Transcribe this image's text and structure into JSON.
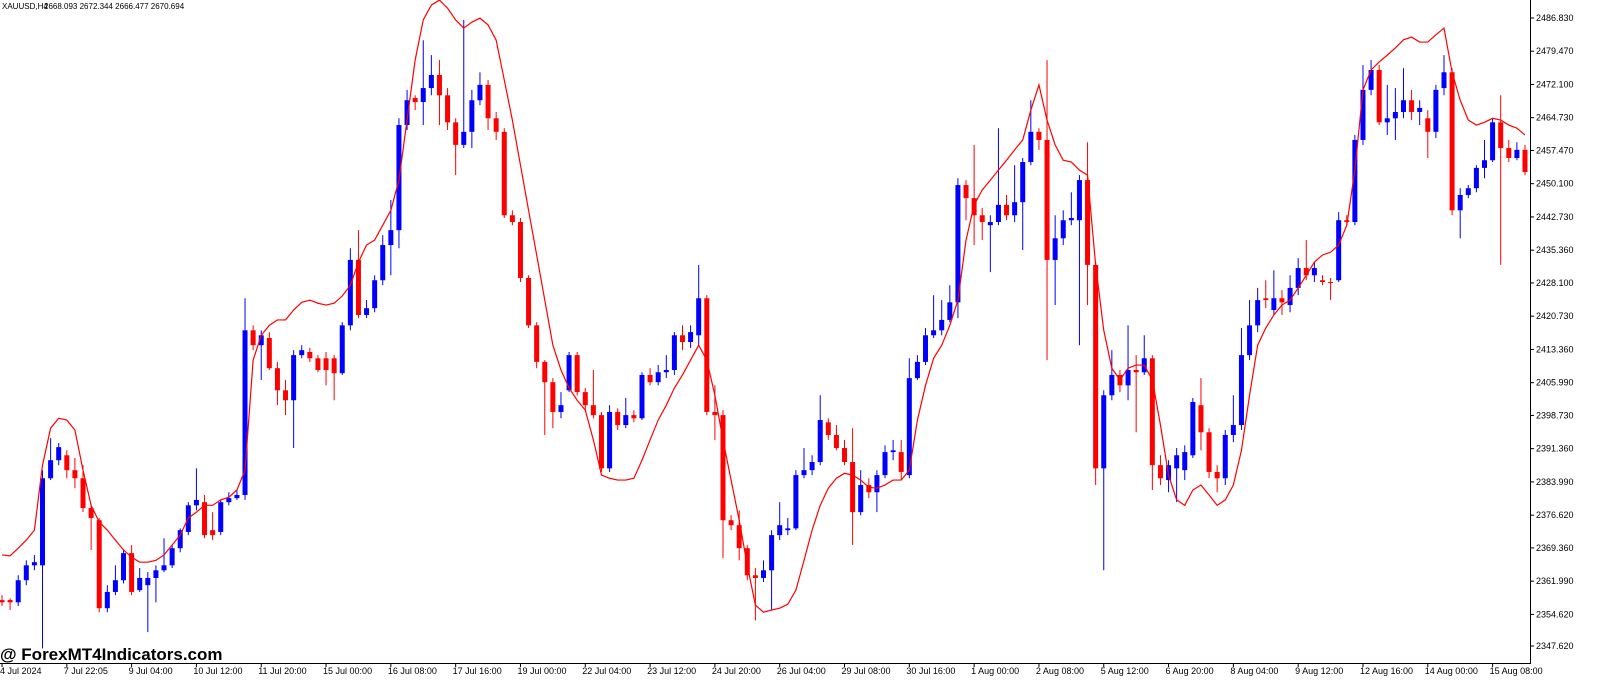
{
  "chart_data": {
    "type": "candlestick",
    "title": "XAUUSD,H4",
    "subtitle": "2668.093 2672.344 2666.477 2670.694",
    "annotation": "@ ForexMT4Indicators.com",
    "up_color": "#0000ff",
    "down_color": "#ff0000",
    "overlay_color": "#ff0000",
    "categories": [
      "4 Jul 2024",
      null,
      null,
      null,
      null,
      null,
      null,
      null,
      "7 Jul 22:05",
      null,
      null,
      null,
      null,
      null,
      null,
      null,
      "9 Jul 04:00",
      null,
      null,
      null,
      null,
      null,
      null,
      null,
      "10 Jul 12:00",
      null,
      null,
      null,
      null,
      null,
      null,
      null,
      "11 Jul 20:00",
      null,
      null,
      null,
      null,
      null,
      null,
      null,
      "15 Jul 00:00",
      null,
      null,
      null,
      null,
      null,
      null,
      null,
      "16 Jul 08:00",
      null,
      null,
      null,
      null,
      null,
      null,
      null,
      "17 Jul 16:00",
      null,
      null,
      null,
      null,
      null,
      null,
      null,
      "19 Jul 00:00",
      null,
      null,
      null,
      null,
      null,
      null,
      null,
      "22 Jul 04:00",
      null,
      null,
      null,
      null,
      null,
      null,
      null,
      "23 Jul 12:00",
      null,
      null,
      null,
      null,
      null,
      null,
      null,
      "24 Jul 20:00",
      null,
      null,
      null,
      null,
      null,
      null,
      null,
      "26 Jul 04:00",
      null,
      null,
      null,
      null,
      null,
      null,
      null,
      "29 Jul 08:00",
      null,
      null,
      null,
      null,
      null,
      null,
      null,
      "30 Jul 16:00",
      null,
      null,
      null,
      null,
      null,
      null,
      null,
      "1 Aug 00:00",
      null,
      null,
      null,
      null,
      null,
      null,
      null,
      "2 Aug 08:00",
      null,
      null,
      null,
      null,
      null,
      null,
      null,
      "5 Aug 12:00",
      null,
      null,
      null,
      null,
      null,
      null,
      null,
      "6 Aug 20:00",
      null,
      null,
      null,
      null,
      null,
      null,
      null,
      "8 Aug 04:00",
      null,
      null,
      null,
      null,
      null,
      null,
      null,
      "9 Aug 12:00",
      null,
      null,
      null,
      null,
      null,
      null,
      null,
      "12 Aug 16:00",
      null,
      null,
      null,
      null,
      null,
      null,
      null,
      "14 Aug 00:00",
      null,
      null,
      null,
      null,
      null,
      null,
      null,
      "15 Aug 08:00",
      null,
      null,
      null,
      null
    ],
    "open": [
      2357.8,
      2357.8,
      2357.3,
      2362.2,
      2365.5,
      2365.5,
      2384.8,
      2388.8,
      2389.9,
      2386.6,
      2384.8,
      2378.2,
      2375.5,
      2356.0,
      2359.6,
      2362.2,
      2368.2,
      2360.0,
      2361.1,
      2362.7,
      2364.4,
      2365.5,
      2369.3,
      2372.9,
      2378.8,
      2379.5,
      2373.3,
      2372.9,
      2379.5,
      2380.4,
      2381.1,
      2417.6,
      2414.3,
      2415.9,
      2409.2,
      2404.3,
      2402.1,
      2412.1,
      2412.8,
      2411.4,
      2411.4,
      2411.4,
      2408.1,
      2418.7,
      2433.2,
      2421.0,
      2422.5,
      2428.7,
      2436.5,
      2439.8,
      2463.1,
      2469.1,
      2468.2,
      2471.3,
      2474.2,
      2469.7,
      2463.7,
      2458.7,
      2461.6,
      2468.6,
      2472.0,
      2464.6,
      2461.6,
      2443.1,
      2441.6,
      2429.2,
      2418.7,
      2410.6,
      2406.1,
      2399.5,
      2404.3,
      2412.1,
      2403.9,
      2401.0,
      2398.8,
      2387.0,
      2399.5,
      2396.6,
      2398.8,
      2398.1,
      2407.7,
      2406.1,
      2408.3,
      2408.8,
      2416.5,
      2415.0,
      2416.5,
      2424.7,
      2399.5,
      2398.8,
      2375.5,
      2374.4,
      2369.3,
      2363.3,
      2362.7,
      2364.4,
      2372.2,
      2373.3,
      2373.7,
      2385.5,
      2386.6,
      2388.4,
      2397.2,
      2394.4,
      2391.5,
      2388.4,
      2377.3,
      2383.3,
      2381.7,
      2385.5,
      2390.6,
      2390.6,
      2385.5,
      2407.0,
      2410.6,
      2416.5,
      2417.6,
      2419.9,
      2423.8,
      2449.8,
      2446.9,
      2443.1,
      2440.9,
      2441.6,
      2445.4,
      2443.1,
      2446.0,
      2454.9,
      2461.6,
      2459.8,
      2433.2,
      2438.0,
      2442.0,
      2442.0,
      2450.9,
      2432.1,
      2387.0,
      2403.2,
      2407.7,
      2405.4,
      2408.8,
      2408.3,
      2411.4,
      2387.7,
      2384.4,
      2387.0,
      2386.6,
      2389.9,
      2401.0,
      2395.0,
      2386.2,
      2384.8,
      2394.4,
      2396.6,
      2412.1,
      2418.7,
      2424.7,
      2422.1,
      2424.7,
      2423.2,
      2427.0,
      2431.4,
      2429.8,
      2428.7,
      2428.3,
      2428.7,
      2442.0,
      2441.6,
      2459.8,
      2470.9,
      2475.3,
      2463.7,
      2464.6,
      2466.0,
      2468.6,
      2466.0,
      2464.6,
      2461.6,
      2471.3,
      2474.8,
      2444.2,
      2447.6,
      2449.1,
      2453.6,
      2455.3,
      2463.7,
      2458.0,
      2455.8,
      2457.6
    ],
    "high": [
      2358.9,
      2358.2,
      2363.3,
      2366.6,
      2367.8,
      2386.6,
      2393.7,
      2392.6,
      2391.0,
      2389.3,
      2387.7,
      2378.8,
      2376.0,
      2361.1,
      2365.5,
      2368.9,
      2370.0,
      2364.9,
      2364.0,
      2365.5,
      2371.5,
      2370.0,
      2373.7,
      2379.5,
      2387.0,
      2381.1,
      2377.3,
      2380.0,
      2381.7,
      2382.2,
      2424.7,
      2418.7,
      2417.6,
      2417.2,
      2410.6,
      2406.6,
      2413.2,
      2414.3,
      2413.7,
      2412.1,
      2412.8,
      2412.1,
      2419.4,
      2435.8,
      2439.8,
      2424.3,
      2429.8,
      2438.7,
      2446.5,
      2464.6,
      2470.9,
      2469.7,
      2481.9,
      2478.6,
      2477.5,
      2471.3,
      2464.6,
      2486.4,
      2470.9,
      2474.8,
      2473.1,
      2466.0,
      2462.4,
      2444.2,
      2442.5,
      2429.8,
      2419.4,
      2411.0,
      2407.0,
      2403.9,
      2412.8,
      2412.8,
      2404.8,
      2408.8,
      2399.5,
      2401.0,
      2400.3,
      2402.6,
      2399.9,
      2408.3,
      2409.2,
      2409.9,
      2412.1,
      2417.2,
      2418.7,
      2418.7,
      2432.1,
      2425.4,
      2405.4,
      2399.9,
      2376.6,
      2377.7,
      2370.0,
      2364.9,
      2366.6,
      2373.3,
      2379.5,
      2376.0,
      2386.6,
      2391.5,
      2389.9,
      2403.2,
      2398.1,
      2396.6,
      2393.3,
      2395.9,
      2386.6,
      2384.8,
      2386.6,
      2392.1,
      2393.3,
      2393.3,
      2411.4,
      2412.1,
      2418.1,
      2425.4,
      2424.3,
      2427.6,
      2451.3,
      2450.9,
      2458.7,
      2444.7,
      2443.1,
      2462.4,
      2447.6,
      2454.2,
      2455.8,
      2468.6,
      2462.4,
      2477.5,
      2443.1,
      2444.2,
      2448.2,
      2452.0,
      2459.3,
      2432.7,
      2404.3,
      2413.2,
      2408.8,
      2418.7,
      2412.1,
      2416.5,
      2412.1,
      2389.9,
      2388.8,
      2391.5,
      2392.1,
      2402.6,
      2407.0,
      2395.9,
      2387.7,
      2395.5,
      2403.2,
      2418.1,
      2424.3,
      2427.0,
      2428.7,
      2430.9,
      2426.5,
      2429.8,
      2433.6,
      2437.6,
      2432.7,
      2429.8,
      2429.2,
      2443.8,
      2443.1,
      2460.9,
      2476.4,
      2477.5,
      2476.4,
      2472.0,
      2471.3,
      2475.7,
      2470.9,
      2468.6,
      2466.4,
      2472.0,
      2478.6,
      2475.7,
      2449.1,
      2449.8,
      2454.2,
      2459.8,
      2464.6,
      2469.7,
      2459.8,
      2459.3,
      2458.7
    ],
    "low": [
      2356.5,
      2355.6,
      2356.5,
      2361.1,
      2364.4,
      2347.1,
      2384.4,
      2387.7,
      2384.8,
      2382.6,
      2377.3,
      2368.9,
      2355.1,
      2355.1,
      2358.9,
      2361.5,
      2358.9,
      2359.6,
      2350.7,
      2357.3,
      2364.0,
      2364.9,
      2368.4,
      2372.2,
      2377.7,
      2371.5,
      2371.1,
      2372.2,
      2378.8,
      2380.0,
      2380.0,
      2413.2,
      2406.6,
      2408.8,
      2401.0,
      2398.8,
      2391.5,
      2411.4,
      2410.6,
      2408.3,
      2405.4,
      2402.1,
      2407.7,
      2417.6,
      2420.3,
      2420.3,
      2421.6,
      2427.6,
      2429.8,
      2435.8,
      2462.0,
      2466.4,
      2463.1,
      2469.7,
      2463.1,
      2462.0,
      2452.0,
      2458.0,
      2458.0,
      2467.5,
      2462.0,
      2459.8,
      2442.5,
      2440.9,
      2428.3,
      2418.1,
      2409.2,
      2394.4,
      2395.9,
      2398.1,
      2403.9,
      2403.2,
      2399.9,
      2398.1,
      2386.2,
      2386.2,
      2395.5,
      2395.9,
      2397.2,
      2397.7,
      2405.4,
      2405.4,
      2407.0,
      2407.7,
      2413.2,
      2413.7,
      2414.3,
      2398.8,
      2393.3,
      2367.1,
      2373.3,
      2366.6,
      2362.2,
      2353.3,
      2361.8,
      2355.6,
      2371.1,
      2372.2,
      2373.3,
      2384.8,
      2385.5,
      2387.7,
      2393.3,
      2391.0,
      2387.7,
      2370.0,
      2376.6,
      2380.4,
      2377.3,
      2384.8,
      2388.8,
      2384.4,
      2384.8,
      2406.6,
      2409.9,
      2415.9,
      2416.5,
      2419.4,
      2420.3,
      2442.0,
      2436.5,
      2437.6,
      2430.5,
      2440.9,
      2442.0,
      2441.6,
      2435.4,
      2454.2,
      2457.6,
      2411.0,
      2423.2,
      2436.5,
      2440.9,
      2414.3,
      2423.2,
      2383.3,
      2364.4,
      2402.1,
      2403.9,
      2402.1,
      2395.0,
      2407.7,
      2382.2,
      2383.3,
      2381.7,
      2379.5,
      2384.4,
      2389.3,
      2391.0,
      2384.8,
      2381.7,
      2383.3,
      2392.8,
      2395.5,
      2411.0,
      2417.2,
      2422.5,
      2421.0,
      2421.0,
      2421.6,
      2425.4,
      2428.7,
      2428.3,
      2427.6,
      2424.3,
      2428.3,
      2440.9,
      2440.9,
      2458.7,
      2469.7,
      2463.1,
      2460.9,
      2459.8,
      2464.6,
      2464.2,
      2463.1,
      2455.8,
      2460.2,
      2469.7,
      2443.1,
      2438.0,
      2446.9,
      2448.2,
      2451.3,
      2454.9,
      2432.1,
      2454.9,
      2455.3,
      2452.0
    ],
    "close": [
      2357.3,
      2357.3,
      2362.2,
      2365.5,
      2366.2,
      2384.8,
      2388.8,
      2391.7,
      2386.6,
      2384.8,
      2378.2,
      2376.0,
      2356.0,
      2359.6,
      2362.2,
      2368.2,
      2359.6,
      2362.7,
      2362.7,
      2364.4,
      2365.5,
      2369.3,
      2373.3,
      2378.8,
      2380.0,
      2372.2,
      2372.2,
      2379.5,
      2380.4,
      2381.1,
      2417.6,
      2414.3,
      2416.5,
      2409.2,
      2404.3,
      2402.1,
      2412.1,
      2413.2,
      2411.4,
      2408.8,
      2408.8,
      2408.1,
      2418.7,
      2433.2,
      2421.0,
      2422.5,
      2428.7,
      2436.5,
      2439.8,
      2463.1,
      2468.6,
      2468.2,
      2471.3,
      2474.2,
      2469.7,
      2463.7,
      2458.7,
      2461.6,
      2468.6,
      2472.0,
      2464.6,
      2461.6,
      2443.1,
      2441.6,
      2429.2,
      2418.7,
      2410.6,
      2406.1,
      2399.5,
      2401.0,
      2412.1,
      2403.9,
      2401.0,
      2398.8,
      2387.0,
      2399.5,
      2396.6,
      2398.8,
      2398.1,
      2407.7,
      2406.1,
      2408.3,
      2408.8,
      2416.5,
      2415.0,
      2417.2,
      2424.7,
      2399.5,
      2398.8,
      2375.5,
      2374.4,
      2369.3,
      2363.3,
      2362.7,
      2364.4,
      2372.2,
      2374.4,
      2373.7,
      2385.5,
      2386.6,
      2388.4,
      2397.7,
      2394.4,
      2391.5,
      2388.4,
      2377.3,
      2383.3,
      2381.7,
      2385.5,
      2390.6,
      2391.0,
      2386.2,
      2407.0,
      2410.6,
      2416.5,
      2417.6,
      2419.9,
      2423.8,
      2449.8,
      2446.9,
      2443.1,
      2441.6,
      2441.6,
      2445.4,
      2443.1,
      2446.0,
      2454.9,
      2461.6,
      2459.8,
      2433.2,
      2438.0,
      2442.0,
      2442.5,
      2450.9,
      2432.1,
      2387.0,
      2403.2,
      2407.7,
      2405.4,
      2408.8,
      2408.3,
      2411.4,
      2387.7,
      2384.8,
      2387.7,
      2389.9,
      2390.6,
      2401.7,
      2395.0,
      2386.2,
      2384.8,
      2394.4,
      2396.6,
      2412.1,
      2418.7,
      2424.3,
      2424.3,
      2424.7,
      2423.8,
      2427.0,
      2431.4,
      2429.8,
      2431.4,
      2428.3,
      2428.1,
      2442.0,
      2441.6,
      2459.8,
      2470.9,
      2475.3,
      2463.7,
      2464.6,
      2466.0,
      2468.6,
      2466.0,
      2466.9,
      2461.6,
      2470.9,
      2474.8,
      2444.2,
      2447.6,
      2449.1,
      2453.6,
      2455.3,
      2463.7,
      2458.0,
      2455.8,
      2457.6,
      2452.7
    ],
    "overlay": [
      2367.8,
      2367.6,
      2369.3,
      2371.1,
      2373.3,
      2387.7,
      2395.9,
      2398.1,
      2397.7,
      2395.5,
      2386.6,
      2378.8,
      2375.1,
      2373.3,
      2371.1,
      2368.9,
      2367.3,
      2366.2,
      2366.2,
      2366.6,
      2367.8,
      2370.0,
      2372.2,
      2376.0,
      2377.3,
      2378.8,
      2378.8,
      2380.0,
      2380.6,
      2382.2,
      2386.6,
      2411.0,
      2416.5,
      2418.7,
      2419.9,
      2419.9,
      2422.1,
      2423.8,
      2424.3,
      2423.6,
      2423.2,
      2423.6,
      2425.2,
      2427.6,
      2432.7,
      2436.5,
      2437.6,
      2440.9,
      2444.2,
      2450.9,
      2464.2,
      2477.5,
      2486.4,
      2489.7,
      2490.8,
      2489.0,
      2486.4,
      2484.6,
      2485.9,
      2486.8,
      2485.3,
      2481.9,
      2473.1,
      2464.2,
      2454.2,
      2444.2,
      2434.3,
      2424.3,
      2414.3,
      2408.8,
      2404.8,
      2402.1,
      2399.9,
      2393.3,
      2385.5,
      2384.8,
      2384.4,
      2384.4,
      2384.8,
      2388.8,
      2393.3,
      2397.7,
      2401.0,
      2404.8,
      2407.7,
      2411.0,
      2414.3,
      2411.0,
      2403.2,
      2393.3,
      2384.4,
      2375.5,
      2365.5,
      2356.7,
      2355.1,
      2355.6,
      2356.0,
      2356.9,
      2360.0,
      2366.6,
      2373.3,
      2378.8,
      2382.6,
      2384.8,
      2385.9,
      2385.5,
      2384.4,
      2382.8,
      2382.6,
      2383.3,
      2384.4,
      2384.4,
      2386.6,
      2397.7,
      2405.4,
      2411.4,
      2414.3,
      2418.7,
      2424.3,
      2437.6,
      2445.4,
      2448.7,
      2450.9,
      2453.1,
      2455.3,
      2457.6,
      2459.8,
      2466.4,
      2472.0,
      2464.2,
      2458.7,
      2455.3,
      2454.9,
      2453.1,
      2452.0,
      2432.1,
      2417.6,
      2409.2,
      2406.6,
      2409.2,
      2409.9,
      2409.9,
      2406.6,
      2396.6,
      2385.5,
      2380.0,
      2378.8,
      2382.2,
      2383.3,
      2381.1,
      2378.8,
      2380.0,
      2383.3,
      2391.0,
      2403.2,
      2414.3,
      2418.1,
      2421.0,
      2423.2,
      2424.3,
      2427.0,
      2429.8,
      2432.7,
      2434.3,
      2434.9,
      2436.5,
      2440.9,
      2453.1,
      2470.9,
      2475.3,
      2477.1,
      2478.6,
      2480.2,
      2482.0,
      2482.6,
      2481.5,
      2481.5,
      2483.1,
      2484.6,
      2474.8,
      2468.6,
      2464.2,
      2463.1,
      2463.7,
      2464.6,
      2464.2,
      2463.1,
      2462.4,
      2460.9
    ],
    "ylim": [
      2343.85,
      2490.82
    ],
    "yticks": [
      {
        "value": 2486.83,
        "label": "2486.830"
      },
      {
        "value": 2479.47,
        "label": "2479.470"
      },
      {
        "value": 2472.1,
        "label": "2472.100"
      },
      {
        "value": 2464.73,
        "label": "2464.730"
      },
      {
        "value": 2457.47,
        "label": "2457.470"
      },
      {
        "value": 2450.1,
        "label": "2450.100"
      },
      {
        "value": 2442.73,
        "label": "2442.730"
      },
      {
        "value": 2435.36,
        "label": "2435.360"
      },
      {
        "value": 2428.1,
        "label": "2428.100"
      },
      {
        "value": 2420.73,
        "label": "2420.730"
      },
      {
        "value": 2413.36,
        "label": "2413.360"
      },
      {
        "value": 2405.99,
        "label": "2405.990"
      },
      {
        "value": 2398.73,
        "label": "2398.730"
      },
      {
        "value": 2391.36,
        "label": "2391.360"
      },
      {
        "value": 2383.99,
        "label": "2383.990"
      },
      {
        "value": 2376.62,
        "label": "2376.620"
      },
      {
        "value": 2369.36,
        "label": "2369.360"
      },
      {
        "value": 2361.99,
        "label": "2361.990"
      },
      {
        "value": 2354.62,
        "label": "2354.620"
      },
      {
        "value": 2347.62,
        "label": "2347.620"
      }
    ],
    "grid": false
  }
}
